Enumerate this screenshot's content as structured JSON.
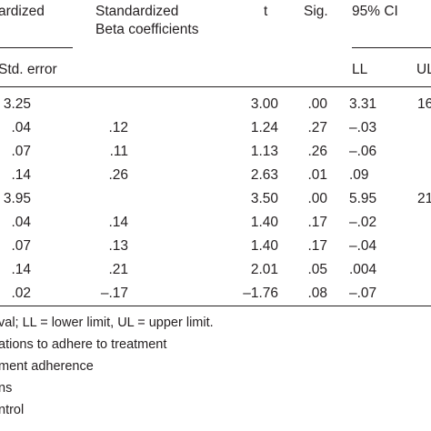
{
  "header": {
    "unstandardized_partial": "ardized",
    "standardized_line1": "Standardized",
    "standardized_line2": "Beta coefficients",
    "t": "t",
    "sig": "Sig.",
    "ci": "95% CI",
    "std_error": "Std. error",
    "ll": "LL",
    "ul_partial": "UL"
  },
  "rows": [
    {
      "se": "3.25",
      "beta": "",
      "t": "3.00",
      "sig": ".00",
      "ll": "3.31",
      "ul": "16"
    },
    {
      "se": ".04",
      "beta": ".12",
      "t": "1.24",
      "sig": ".27",
      "ll": "–.03",
      "ul": ""
    },
    {
      "se": ".07",
      "beta": ".11",
      "t": "1.13",
      "sig": ".26",
      "ll": "–.06",
      "ul": ""
    },
    {
      "se": ".14",
      "beta": ".26",
      "t": "2.63",
      "sig": ".01",
      "ll": ".09",
      "ul": ""
    },
    {
      "se": "3.95",
      "beta": "",
      "t": "3.50",
      "sig": ".00",
      "ll": "5.95",
      "ul": "21"
    },
    {
      "se": ".04",
      "beta": ".14",
      "t": "1.40",
      "sig": ".17",
      "ll": "–.02",
      "ul": ""
    },
    {
      "se": ".07",
      "beta": ".13",
      "t": "1.40",
      "sig": ".17",
      "ll": "–.04",
      "ul": ""
    },
    {
      "se": ".14",
      "beta": ".21",
      "t": "2.01",
      "sig": ".05",
      "ll": ".004",
      "ul": ""
    },
    {
      "se": ".02",
      "beta": "–.17",
      "t": "–1.76",
      "sig": ".08",
      "ll": "–.07",
      "ul": ""
    }
  ],
  "notes": [
    "val; LL = lower limit, UL = upper limit.",
    "ations to adhere to treatment",
    "ment adherence",
    "ns",
    "ntrol"
  ]
}
